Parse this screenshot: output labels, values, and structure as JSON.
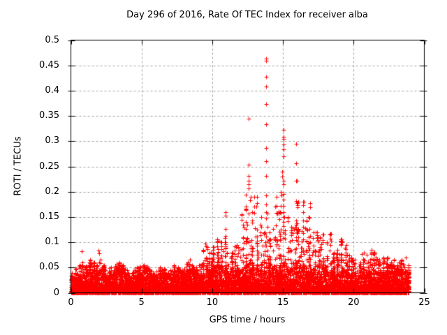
{
  "chart_data": {
    "type": "scatter",
    "title": "Day 296 of 2016, Rate Of TEC Index for receiver alba",
    "xlabel": "GPS time / hours",
    "ylabel": "ROTI / TECUs",
    "xlim": [
      0,
      25
    ],
    "ylim": [
      0,
      0.5
    ],
    "xticks": [
      0,
      5,
      10,
      15,
      20,
      25
    ],
    "xtick_labels": [
      "0",
      "5",
      "10",
      "15",
      "20",
      "25"
    ],
    "yticks": [
      0,
      0.05,
      0.1,
      0.15,
      0.2,
      0.25,
      0.3,
      0.35,
      0.4,
      0.45,
      0.5
    ],
    "ytick_labels": [
      "0",
      "0.05",
      "0.1",
      "0.15",
      "0.2",
      "0.25",
      "0.3",
      "0.35",
      "0.4",
      "0.45",
      "0.5"
    ],
    "grid": true,
    "legend": "none",
    "marker": "plus",
    "marker_size_px": 7,
    "marker_color": "#ff0000",
    "grid_color": "#a0a0a0",
    "axis_color": "#000000",
    "background": "#ffffff",
    "data_time_range_hours": [
      0,
      23.9
    ],
    "bin_width_hours": 0.25,
    "bins_hour_bandtop_max": [
      [
        0.0,
        0.028,
        0.04
      ],
      [
        0.25,
        0.03,
        0.048
      ],
      [
        0.5,
        0.032,
        0.055
      ],
      [
        0.75,
        0.035,
        0.06
      ],
      [
        1.0,
        0.038,
        0.052
      ],
      [
        1.25,
        0.045,
        0.065
      ],
      [
        1.5,
        0.042,
        0.06
      ],
      [
        1.75,
        0.038,
        0.055
      ],
      [
        2.0,
        0.042,
        0.065
      ],
      [
        2.25,
        0.038,
        0.055
      ],
      [
        2.5,
        0.028,
        0.042
      ],
      [
        2.75,
        0.032,
        0.05
      ],
      [
        3.0,
        0.038,
        0.057
      ],
      [
        3.25,
        0.044,
        0.06
      ],
      [
        3.5,
        0.042,
        0.055
      ],
      [
        3.75,
        0.036,
        0.046
      ],
      [
        4.0,
        0.03,
        0.04
      ],
      [
        4.25,
        0.028,
        0.04
      ],
      [
        4.5,
        0.032,
        0.05
      ],
      [
        4.75,
        0.036,
        0.052
      ],
      [
        5.0,
        0.04,
        0.055
      ],
      [
        5.25,
        0.042,
        0.052
      ],
      [
        5.5,
        0.036,
        0.046
      ],
      [
        5.75,
        0.03,
        0.04
      ],
      [
        6.0,
        0.03,
        0.042
      ],
      [
        6.25,
        0.036,
        0.05
      ],
      [
        6.5,
        0.04,
        0.047
      ],
      [
        6.75,
        0.032,
        0.04
      ],
      [
        7.0,
        0.03,
        0.045
      ],
      [
        7.25,
        0.036,
        0.055
      ],
      [
        7.5,
        0.042,
        0.05
      ],
      [
        7.75,
        0.036,
        0.045
      ],
      [
        8.0,
        0.036,
        0.058
      ],
      [
        8.25,
        0.042,
        0.065
      ],
      [
        8.5,
        0.044,
        0.055
      ],
      [
        8.75,
        0.036,
        0.05
      ],
      [
        9.0,
        0.03,
        0.055
      ],
      [
        9.25,
        0.04,
        0.085
      ],
      [
        9.5,
        0.048,
        0.09
      ],
      [
        9.75,
        0.044,
        0.08
      ],
      [
        10.0,
        0.05,
        0.09
      ],
      [
        10.25,
        0.055,
        0.106
      ],
      [
        10.5,
        0.052,
        0.1
      ],
      [
        10.75,
        0.048,
        0.1
      ],
      [
        11.0,
        0.034,
        0.08
      ],
      [
        11.25,
        0.036,
        0.08
      ],
      [
        11.5,
        0.044,
        0.095
      ],
      [
        11.75,
        0.046,
        0.09
      ],
      [
        12.0,
        0.044,
        0.155
      ],
      [
        12.25,
        0.05,
        0.17
      ],
      [
        12.5,
        0.055,
        0.19
      ],
      [
        12.75,
        0.048,
        0.16
      ],
      [
        13.0,
        0.05,
        0.19
      ],
      [
        13.25,
        0.046,
        0.15
      ],
      [
        13.5,
        0.042,
        0.12
      ],
      [
        13.75,
        0.052,
        0.16
      ],
      [
        14.0,
        0.055,
        0.12
      ],
      [
        14.25,
        0.048,
        0.17
      ],
      [
        14.5,
        0.046,
        0.19
      ],
      [
        14.75,
        0.052,
        0.2
      ],
      [
        15.0,
        0.058,
        0.15
      ],
      [
        15.25,
        0.05,
        0.15
      ],
      [
        15.5,
        0.046,
        0.13
      ],
      [
        15.75,
        0.05,
        0.13
      ],
      [
        16.0,
        0.055,
        0.18
      ],
      [
        16.25,
        0.05,
        0.18
      ],
      [
        16.5,
        0.048,
        0.143
      ],
      [
        16.75,
        0.05,
        0.15
      ],
      [
        17.0,
        0.046,
        0.12
      ],
      [
        17.25,
        0.044,
        0.12
      ],
      [
        17.5,
        0.042,
        0.11
      ],
      [
        17.75,
        0.044,
        0.115
      ],
      [
        18.0,
        0.04,
        0.1
      ],
      [
        18.25,
        0.042,
        0.117
      ],
      [
        18.5,
        0.036,
        0.08
      ],
      [
        18.75,
        0.038,
        0.085
      ],
      [
        19.0,
        0.042,
        0.105
      ],
      [
        19.25,
        0.04,
        0.095
      ],
      [
        19.5,
        0.036,
        0.075
      ],
      [
        19.75,
        0.034,
        0.07
      ],
      [
        20.0,
        0.034,
        0.065
      ],
      [
        20.25,
        0.032,
        0.06
      ],
      [
        20.5,
        0.036,
        0.08
      ],
      [
        20.75,
        0.036,
        0.075
      ],
      [
        21.0,
        0.038,
        0.065
      ],
      [
        21.25,
        0.042,
        0.085
      ],
      [
        21.5,
        0.038,
        0.07
      ],
      [
        21.75,
        0.034,
        0.065
      ],
      [
        22.0,
        0.038,
        0.07
      ],
      [
        22.25,
        0.04,
        0.07
      ],
      [
        22.5,
        0.036,
        0.06
      ],
      [
        22.75,
        0.038,
        0.065
      ],
      [
        23.0,
        0.04,
        0.06
      ],
      [
        23.25,
        0.038,
        0.065
      ],
      [
        23.5,
        0.042,
        0.07
      ],
      [
        23.75,
        0.038,
        0.055
      ]
    ],
    "spike_columns": [
      [
        0.78,
        [
          0.082
        ]
      ],
      [
        1.93,
        [
          0.084
        ]
      ],
      [
        1.98,
        [
          0.078
        ]
      ],
      [
        9.5,
        [
          0.098
        ]
      ],
      [
        9.58,
        [
          0.092
        ]
      ],
      [
        10.87,
        [
          0.109
        ]
      ],
      [
        10.95,
        [
          0.16,
          0.152,
          0.127,
          0.112,
          0.1
        ]
      ],
      [
        12.39,
        [
          0.194,
          0.17
        ]
      ],
      [
        12.55,
        [
          0.345,
          0.253,
          0.231,
          0.222,
          0.215,
          0.206
        ]
      ],
      [
        12.95,
        [
          0.19,
          0.17,
          0.158
        ]
      ],
      [
        13.83,
        [
          0.464,
          0.459,
          0.428,
          0.408,
          0.374,
          0.334,
          0.286,
          0.26,
          0.231,
          0.192,
          0.175
        ]
      ],
      [
        14.55,
        [
          0.19,
          0.172,
          0.158
        ]
      ],
      [
        14.97,
        [
          0.24,
          0.23
        ]
      ],
      [
        15.02,
        [
          0.322,
          0.309,
          0.305,
          0.293,
          0.284,
          0.27,
          0.222,
          0.215,
          0.195,
          0.185,
          0.172,
          0.16,
          0.15,
          0.14,
          0.132,
          0.12,
          0.108
        ]
      ],
      [
        15.91,
        [
          0.295,
          0.256,
          0.221,
          0.181,
          0.143,
          0.134,
          0.127,
          0.11
        ]
      ],
      [
        15.98,
        [
          0.222,
          0.177,
          0.138,
          0.12
        ]
      ],
      [
        16.42,
        [
          0.18,
          0.174,
          0.16,
          0.143,
          0.13,
          0.118,
          0.105
        ]
      ],
      [
        16.93,
        [
          0.178,
          0.169,
          0.113,
          0.1
        ]
      ],
      [
        17.4,
        [
          0.12,
          0.108
        ]
      ],
      [
        17.8,
        [
          0.115,
          0.1
        ]
      ],
      [
        18.35,
        [
          0.117,
          0.107,
          0.095
        ]
      ],
      [
        19.1,
        [
          0.105,
          0.095
        ]
      ]
    ],
    "rng_seed": 296
  }
}
